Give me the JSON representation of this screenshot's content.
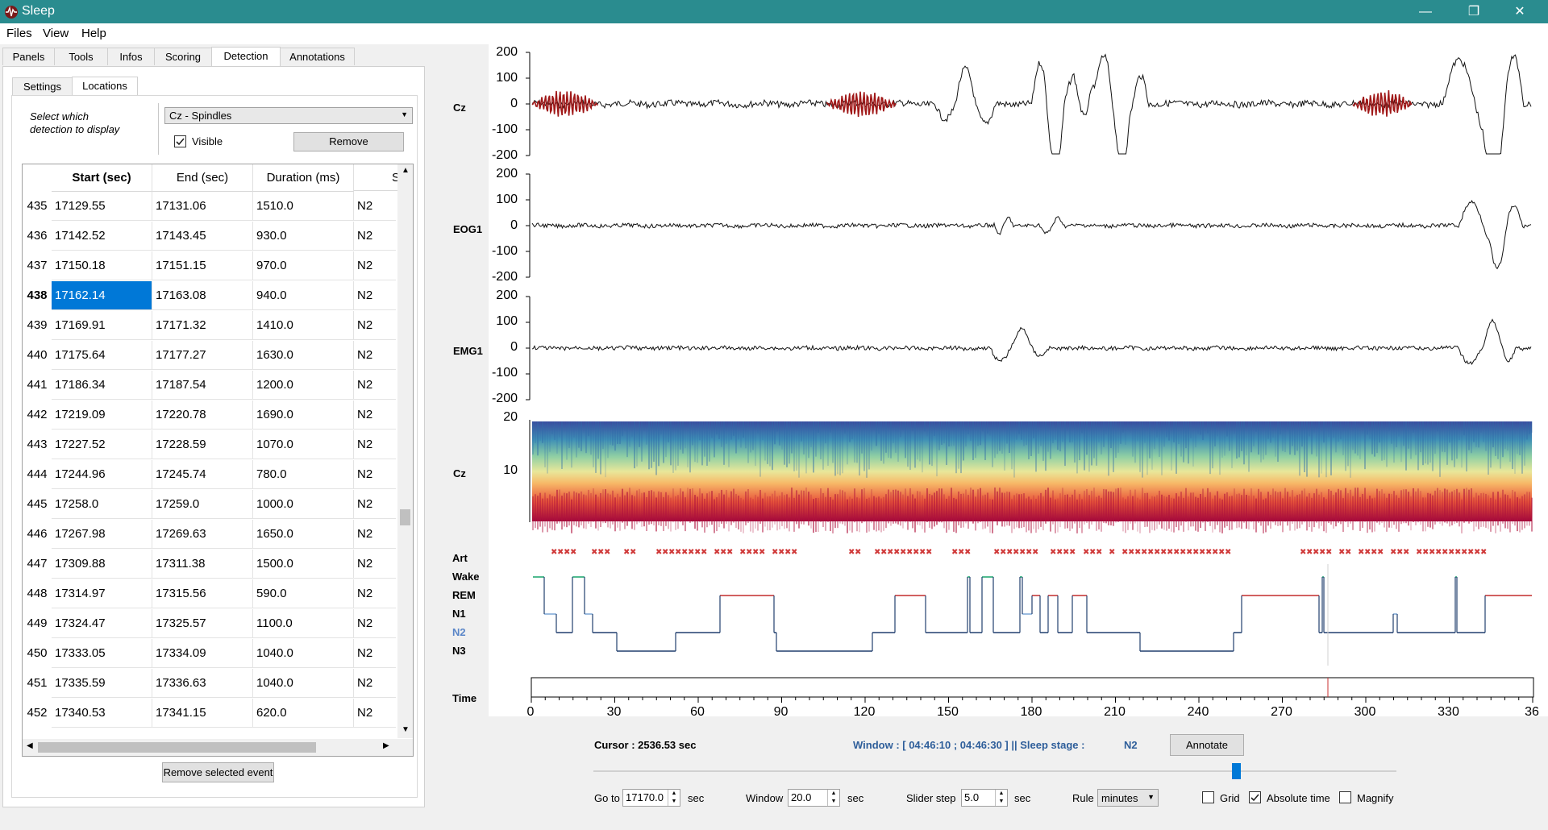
{
  "window": {
    "title": "Sleep",
    "btn_minimize": "—",
    "btn_restore": "❐",
    "btn_close": "✕"
  },
  "menu": [
    "Files",
    "View",
    "Help"
  ],
  "main_tabs": [
    "Panels",
    "Tools",
    "Infos",
    "Scoring",
    "Detection",
    "Annotations"
  ],
  "sub_tabs": [
    "Settings",
    "Locations"
  ],
  "detection": {
    "select_label": "Select which detection to display",
    "selected": "Cz - Spindles",
    "visible_label": "Visible",
    "remove_label": "Remove"
  },
  "table": {
    "headers": [
      "Start (sec)",
      "End (sec)",
      "Duration (ms)",
      "S"
    ],
    "rows": [
      {
        "n": "435",
        "start": "17129.55",
        "end": "17131.06",
        "dur": "1510.0",
        "stage": "N2"
      },
      {
        "n": "436",
        "start": "17142.52",
        "end": "17143.45",
        "dur": "930.0",
        "stage": "N2"
      },
      {
        "n": "437",
        "start": "17150.18",
        "end": "17151.15",
        "dur": "970.0",
        "stage": "N2"
      },
      {
        "n": "438",
        "start": "17162.14",
        "end": "17163.08",
        "dur": "940.0",
        "stage": "N2"
      },
      {
        "n": "439",
        "start": "17169.91",
        "end": "17171.32",
        "dur": "1410.0",
        "stage": "N2"
      },
      {
        "n": "440",
        "start": "17175.64",
        "end": "17177.27",
        "dur": "1630.0",
        "stage": "N2"
      },
      {
        "n": "441",
        "start": "17186.34",
        "end": "17187.54",
        "dur": "1200.0",
        "stage": "N2"
      },
      {
        "n": "442",
        "start": "17219.09",
        "end": "17220.78",
        "dur": "1690.0",
        "stage": "N2"
      },
      {
        "n": "443",
        "start": "17227.52",
        "end": "17228.59",
        "dur": "1070.0",
        "stage": "N2"
      },
      {
        "n": "444",
        "start": "17244.96",
        "end": "17245.74",
        "dur": "780.0",
        "stage": "N2"
      },
      {
        "n": "445",
        "start": "17258.0",
        "end": "17259.0",
        "dur": "1000.0",
        "stage": "N2"
      },
      {
        "n": "446",
        "start": "17267.98",
        "end": "17269.63",
        "dur": "1650.0",
        "stage": "N2"
      },
      {
        "n": "447",
        "start": "17309.88",
        "end": "17311.38",
        "dur": "1500.0",
        "stage": "N2"
      },
      {
        "n": "448",
        "start": "17314.97",
        "end": "17315.56",
        "dur": "590.0",
        "stage": "N2"
      },
      {
        "n": "449",
        "start": "17324.47",
        "end": "17325.57",
        "dur": "1100.0",
        "stage": "N2"
      },
      {
        "n": "450",
        "start": "17333.05",
        "end": "17334.09",
        "dur": "1040.0",
        "stage": "N2"
      },
      {
        "n": "451",
        "start": "17335.59",
        "end": "17336.63",
        "dur": "1040.0",
        "stage": "N2"
      },
      {
        "n": "452",
        "start": "17340.53",
        "end": "17341.15",
        "dur": "620.0",
        "stage": "N2"
      }
    ],
    "selected_row": "438",
    "remove_selected": "Remove selected event"
  },
  "channels": {
    "eeg": [
      "Cz",
      "EOG1",
      "EMG1"
    ],
    "yticks": [
      "200",
      "100",
      "0",
      "-100",
      "-200"
    ],
    "spec_label": "Cz",
    "spec_yticks": [
      "20",
      "10"
    ]
  },
  "hypnogram": {
    "labels": [
      "Art",
      "Wake",
      "REM",
      "N1",
      "N2",
      "N3"
    ]
  },
  "timeline": {
    "label": "Time",
    "ticks": [
      "0",
      "30",
      "60",
      "90",
      "120",
      "150",
      "180",
      "210",
      "240",
      "270",
      "300",
      "330",
      "36"
    ]
  },
  "controls": {
    "cursor": "Cursor : 2536.53 sec",
    "window_info": "Window : [ 04:46:10 ; 04:46:30 ] || Sleep stage :",
    "sleep_stage": "N2",
    "annotate": "Annotate",
    "goto_label": "Go to",
    "goto_value": "17170.0",
    "window_label": "Window",
    "window_value": "20.0",
    "step_label": "Slider step",
    "step_value": "5.0",
    "sec": "sec",
    "rule_label": "Rule",
    "rule_value": "minutes",
    "grid_label": "Grid",
    "abs_time_label": "Absolute time",
    "magnify_label": "Magnify",
    "slider_position": 0.8
  },
  "colors": {
    "titlebar": "#2a8c8f",
    "selection": "#0078d7",
    "spindle": "#a01818"
  }
}
